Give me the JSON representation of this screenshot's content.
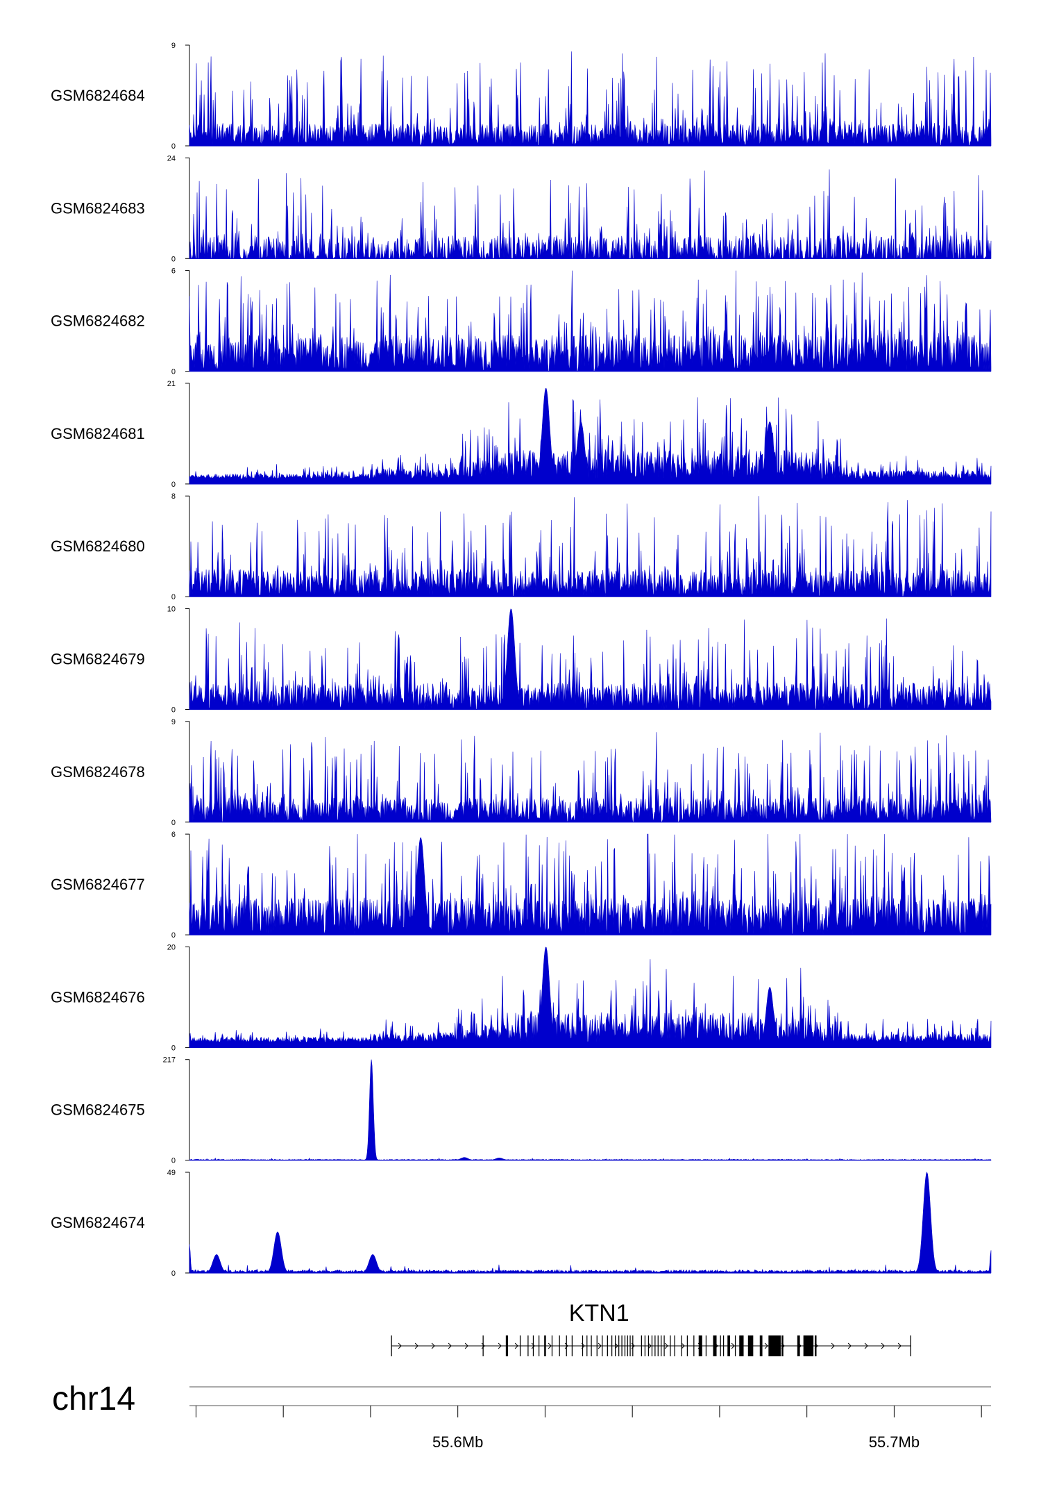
{
  "chart_data": {
    "type": "area",
    "title": "",
    "chromosome": "chr14",
    "xlim": [
      55.5385,
      55.7222
    ],
    "x_unit": "Mb",
    "x_ticks": [
      55.54,
      55.56,
      55.58,
      55.6,
      55.62,
      55.64,
      55.66,
      55.68,
      55.7,
      55.72
    ],
    "x_tick_labels": [
      {
        "value": 55.6,
        "text": "55.6Mb"
      },
      {
        "value": 55.7,
        "text": "55.7Mb"
      }
    ],
    "color": "#0000cc",
    "series": [
      {
        "name": "GSM6824684",
        "ymax": 9,
        "ymax_label": "9",
        "ymin_label": "0",
        "profile": "noise",
        "base": 0.9,
        "spike": 6.5,
        "sparse": false,
        "peaks": []
      },
      {
        "name": "GSM6824683",
        "ymax": 24,
        "ymax_label": "24",
        "ymin_label": "0",
        "profile": "noise",
        "base": 2.5,
        "spike": 16,
        "sparse": true,
        "peaks": []
      },
      {
        "name": "GSM6824682",
        "ymax": 6,
        "ymax_label": "6",
        "ymin_label": "0",
        "profile": "noise",
        "base": 1.0,
        "spike": 4.5,
        "sparse": false,
        "peaks": []
      },
      {
        "name": "GSM6824681",
        "ymax": 21,
        "ymax_label": "21",
        "ymin_label": "0",
        "profile": "domain",
        "base": 1.0,
        "spike": 14,
        "sparse": false,
        "peaks": [
          {
            "x": 55.6202,
            "h": 20
          },
          {
            "x": 55.6282,
            "h": 13
          },
          {
            "x": 55.6715,
            "h": 13
          }
        ]
      },
      {
        "name": "GSM6824680",
        "ymax": 8,
        "ymax_label": "8",
        "ymin_label": "0",
        "profile": "noise",
        "base": 1.0,
        "spike": 6,
        "sparse": false,
        "peaks": []
      },
      {
        "name": "GSM6824679",
        "ymax": 10,
        "ymax_label": "10",
        "ymin_label": "0",
        "profile": "noise",
        "base": 1.2,
        "spike": 6.5,
        "sparse": false,
        "peaks": [
          {
            "x": 55.6122,
            "h": 10
          }
        ]
      },
      {
        "name": "GSM6824678",
        "ymax": 9,
        "ymax_label": "9",
        "ymin_label": "0",
        "profile": "noise",
        "base": 1.0,
        "spike": 6.5,
        "sparse": false,
        "peaks": []
      },
      {
        "name": "GSM6824677",
        "ymax": 6,
        "ymax_label": "6",
        "ymin_label": "0",
        "profile": "noise",
        "base": 1.0,
        "spike": 4.5,
        "sparse": false,
        "peaks": [
          {
            "x": 55.5915,
            "h": 5.8
          }
        ]
      },
      {
        "name": "GSM6824676",
        "ymax": 20,
        "ymax_label": "20",
        "ymin_label": "0",
        "profile": "domain",
        "base": 1.0,
        "spike": 13,
        "sparse": false,
        "peaks": [
          {
            "x": 55.6202,
            "h": 20
          },
          {
            "x": 55.6715,
            "h": 12
          }
        ]
      },
      {
        "name": "GSM6824675",
        "ymax": 217,
        "ymax_label": "217",
        "ymin_label": "0",
        "profile": "quiet",
        "base": 2.0,
        "spike": 4,
        "sparse": false,
        "peaks": [
          {
            "x": 55.5802,
            "h": 217,
            "w": 0.0006
          },
          {
            "x": 55.6015,
            "h": 6
          },
          {
            "x": 55.6095,
            "h": 5
          }
        ]
      },
      {
        "name": "GSM6824674",
        "ymax": 49,
        "ymax_label": "49",
        "ymin_label": "0",
        "profile": "quiet",
        "base": 1.5,
        "spike": 3,
        "sparse": false,
        "peaks": [
          {
            "x": 55.5385,
            "h": 14,
            "w": 0.0003
          },
          {
            "x": 55.5447,
            "h": 9
          },
          {
            "x": 55.5587,
            "h": 20
          },
          {
            "x": 55.5805,
            "h": 9
          },
          {
            "x": 55.7075,
            "h": 49
          },
          {
            "x": 55.7222,
            "h": 11,
            "w": 0.0003
          }
        ]
      }
    ],
    "gene": {
      "name": "KTN1",
      "strand": "+",
      "start": 55.5848,
      "end": 55.7038,
      "exon_ticks": [
        55.5848,
        55.6058,
        55.6143,
        55.6201,
        55.6262,
        55.6343,
        55.6602,
        55.7038
      ],
      "exons": [
        {
          "start": 55.611,
          "end": 55.6115
        },
        {
          "start": 55.616,
          "end": 55.6162
        },
        {
          "start": 55.6172,
          "end": 55.6174
        },
        {
          "start": 55.6185,
          "end": 55.6187
        },
        {
          "start": 55.6198,
          "end": 55.62
        },
        {
          "start": 55.6215,
          "end": 55.6217
        },
        {
          "start": 55.6232,
          "end": 55.6234
        },
        {
          "start": 55.6248,
          "end": 55.625
        },
        {
          "start": 55.6285,
          "end": 55.6287
        },
        {
          "start": 55.6295,
          "end": 55.6297
        },
        {
          "start": 55.6305,
          "end": 55.6307
        },
        {
          "start": 55.6318,
          "end": 55.632
        },
        {
          "start": 55.633,
          "end": 55.6332
        },
        {
          "start": 55.6352,
          "end": 55.6354
        },
        {
          "start": 55.636,
          "end": 55.6362
        },
        {
          "start": 55.6368,
          "end": 55.637
        },
        {
          "start": 55.6375,
          "end": 55.6377
        },
        {
          "start": 55.6382,
          "end": 55.6384
        },
        {
          "start": 55.6388,
          "end": 55.639
        },
        {
          "start": 55.6394,
          "end": 55.6396
        },
        {
          "start": 55.64,
          "end": 55.6402
        },
        {
          "start": 55.642,
          "end": 55.6422
        },
        {
          "start": 55.6428,
          "end": 55.643
        },
        {
          "start": 55.6436,
          "end": 55.6438
        },
        {
          "start": 55.6444,
          "end": 55.6446
        },
        {
          "start": 55.6451,
          "end": 55.6453
        },
        {
          "start": 55.6458,
          "end": 55.646
        },
        {
          "start": 55.6465,
          "end": 55.6467
        },
        {
          "start": 55.6472,
          "end": 55.6474
        },
        {
          "start": 55.6486,
          "end": 55.6488
        },
        {
          "start": 55.6496,
          "end": 55.6498
        },
        {
          "start": 55.6512,
          "end": 55.6514
        },
        {
          "start": 55.6525,
          "end": 55.6527
        },
        {
          "start": 55.654,
          "end": 55.6542
        },
        {
          "start": 55.6552,
          "end": 55.656
        },
        {
          "start": 55.6568,
          "end": 55.657
        },
        {
          "start": 55.6585,
          "end": 55.6593
        },
        {
          "start": 55.6608,
          "end": 55.661
        },
        {
          "start": 55.6618,
          "end": 55.6624
        },
        {
          "start": 55.6635,
          "end": 55.6637
        },
        {
          "start": 55.6645,
          "end": 55.6655
        },
        {
          "start": 55.6665,
          "end": 55.6677
        },
        {
          "start": 55.6692,
          "end": 55.6698
        },
        {
          "start": 55.6712,
          "end": 55.674
        },
        {
          "start": 55.6742,
          "end": 55.6746
        },
        {
          "start": 55.6778,
          "end": 55.6784
        },
        {
          "start": 55.6792,
          "end": 55.6815
        },
        {
          "start": 55.6818,
          "end": 55.6822
        }
      ]
    }
  }
}
